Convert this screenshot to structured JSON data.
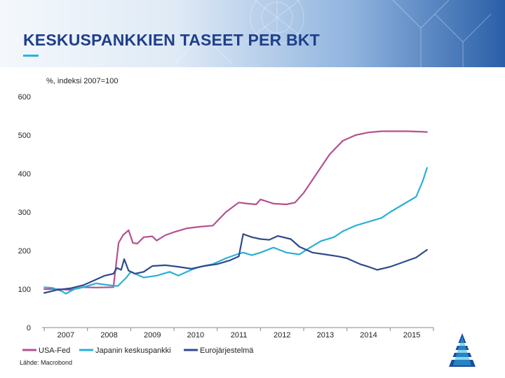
{
  "page": {
    "title": "KESKUSPANKKIEN TASEET PER BKT",
    "source": "Lähde: Macrobond"
  },
  "colors": {
    "title": "#1f3f8a",
    "accent": "#2bb3e3",
    "fed": "#b4518f",
    "boj": "#2ab0d6",
    "ecb": "#2f4a8c"
  },
  "logo": {
    "icon": "bank-of-finland-logo-icon"
  },
  "chart_data": {
    "type": "line",
    "title": "",
    "ylabel": "%, indeksi 2007=100",
    "xlabel": "",
    "ylim": [
      0,
      600
    ],
    "xlim": [
      2006.95,
      2016.0
    ],
    "yticks": [
      0,
      100,
      200,
      300,
      400,
      500,
      600
    ],
    "ytick_labels": [
      "0",
      "100",
      "200",
      "300",
      "400",
      "500",
      "600"
    ],
    "xticks": [
      2007.5,
      2008.5,
      2009.5,
      2010.5,
      2011.5,
      2012.5,
      2013.5,
      2014.5,
      2015.5
    ],
    "xtick_labels": [
      "2007",
      "2008",
      "2009",
      "2010",
      "2011",
      "2012",
      "2013",
      "2014",
      "2015"
    ],
    "grid": false,
    "legend_position": "bottom",
    "series": [
      {
        "name": "USA-Fed",
        "color": "#b4518f",
        "x": [
          2007.0,
          2007.3,
          2007.6,
          2007.9,
          2008.2,
          2008.6,
          2008.72,
          2008.82,
          2008.95,
          2009.05,
          2009.15,
          2009.3,
          2009.5,
          2009.6,
          2009.8,
          2010.0,
          2010.3,
          2010.6,
          2010.9,
          2011.2,
          2011.5,
          2011.7,
          2011.9,
          2012.0,
          2012.3,
          2012.6,
          2012.8,
          2013.0,
          2013.3,
          2013.6,
          2013.9,
          2014.2,
          2014.5,
          2014.8,
          2015.1,
          2015.4,
          2015.7,
          2015.85
        ],
        "values": [
          100,
          100,
          98,
          105,
          104,
          105,
          220,
          240,
          253,
          220,
          218,
          235,
          237,
          226,
          240,
          248,
          258,
          262,
          265,
          300,
          325,
          322,
          320,
          333,
          322,
          320,
          325,
          350,
          400,
          450,
          485,
          500,
          507,
          510,
          510,
          510,
          509,
          508
        ]
      },
      {
        "name": "Japanin keskuspankki",
        "color": "#2ab0d6",
        "x": [
          2007.0,
          2007.2,
          2007.4,
          2007.5,
          2007.7,
          2007.9,
          2008.2,
          2008.5,
          2008.7,
          2008.9,
          2009.0,
          2009.3,
          2009.6,
          2009.9,
          2010.1,
          2010.4,
          2010.6,
          2010.9,
          2011.2,
          2011.45,
          2011.6,
          2011.8,
          2012.0,
          2012.3,
          2012.6,
          2012.9,
          2013.1,
          2013.4,
          2013.7,
          2013.9,
          2014.2,
          2014.5,
          2014.8,
          2015.0,
          2015.3,
          2015.6,
          2015.75,
          2015.85
        ],
        "values": [
          105,
          103,
          95,
          88,
          100,
          105,
          115,
          110,
          108,
          130,
          145,
          130,
          135,
          145,
          135,
          150,
          158,
          165,
          180,
          190,
          195,
          188,
          195,
          208,
          195,
          190,
          205,
          225,
          235,
          250,
          265,
          275,
          285,
          300,
          320,
          340,
          380,
          415
        ]
      },
      {
        "name": "Eurojärjestelmä",
        "color": "#2f4a8c",
        "x": [
          2007.0,
          2007.3,
          2007.6,
          2007.9,
          2008.2,
          2008.4,
          2008.6,
          2008.68,
          2008.78,
          2008.85,
          2008.95,
          2009.1,
          2009.3,
          2009.5,
          2009.8,
          2010.1,
          2010.4,
          2010.7,
          2011.0,
          2011.3,
          2011.5,
          2011.6,
          2011.8,
          2012.0,
          2012.2,
          2012.4,
          2012.7,
          2012.9,
          2013.2,
          2013.5,
          2013.8,
          2014.0,
          2014.3,
          2014.5,
          2014.7,
          2015.0,
          2015.3,
          2015.6,
          2015.85
        ],
        "values": [
          90,
          98,
          102,
          110,
          125,
          135,
          140,
          155,
          150,
          178,
          148,
          140,
          145,
          160,
          162,
          158,
          153,
          160,
          165,
          175,
          185,
          243,
          235,
          230,
          228,
          238,
          230,
          210,
          195,
          190,
          185,
          180,
          165,
          158,
          150,
          158,
          170,
          182,
          202
        ]
      }
    ]
  }
}
